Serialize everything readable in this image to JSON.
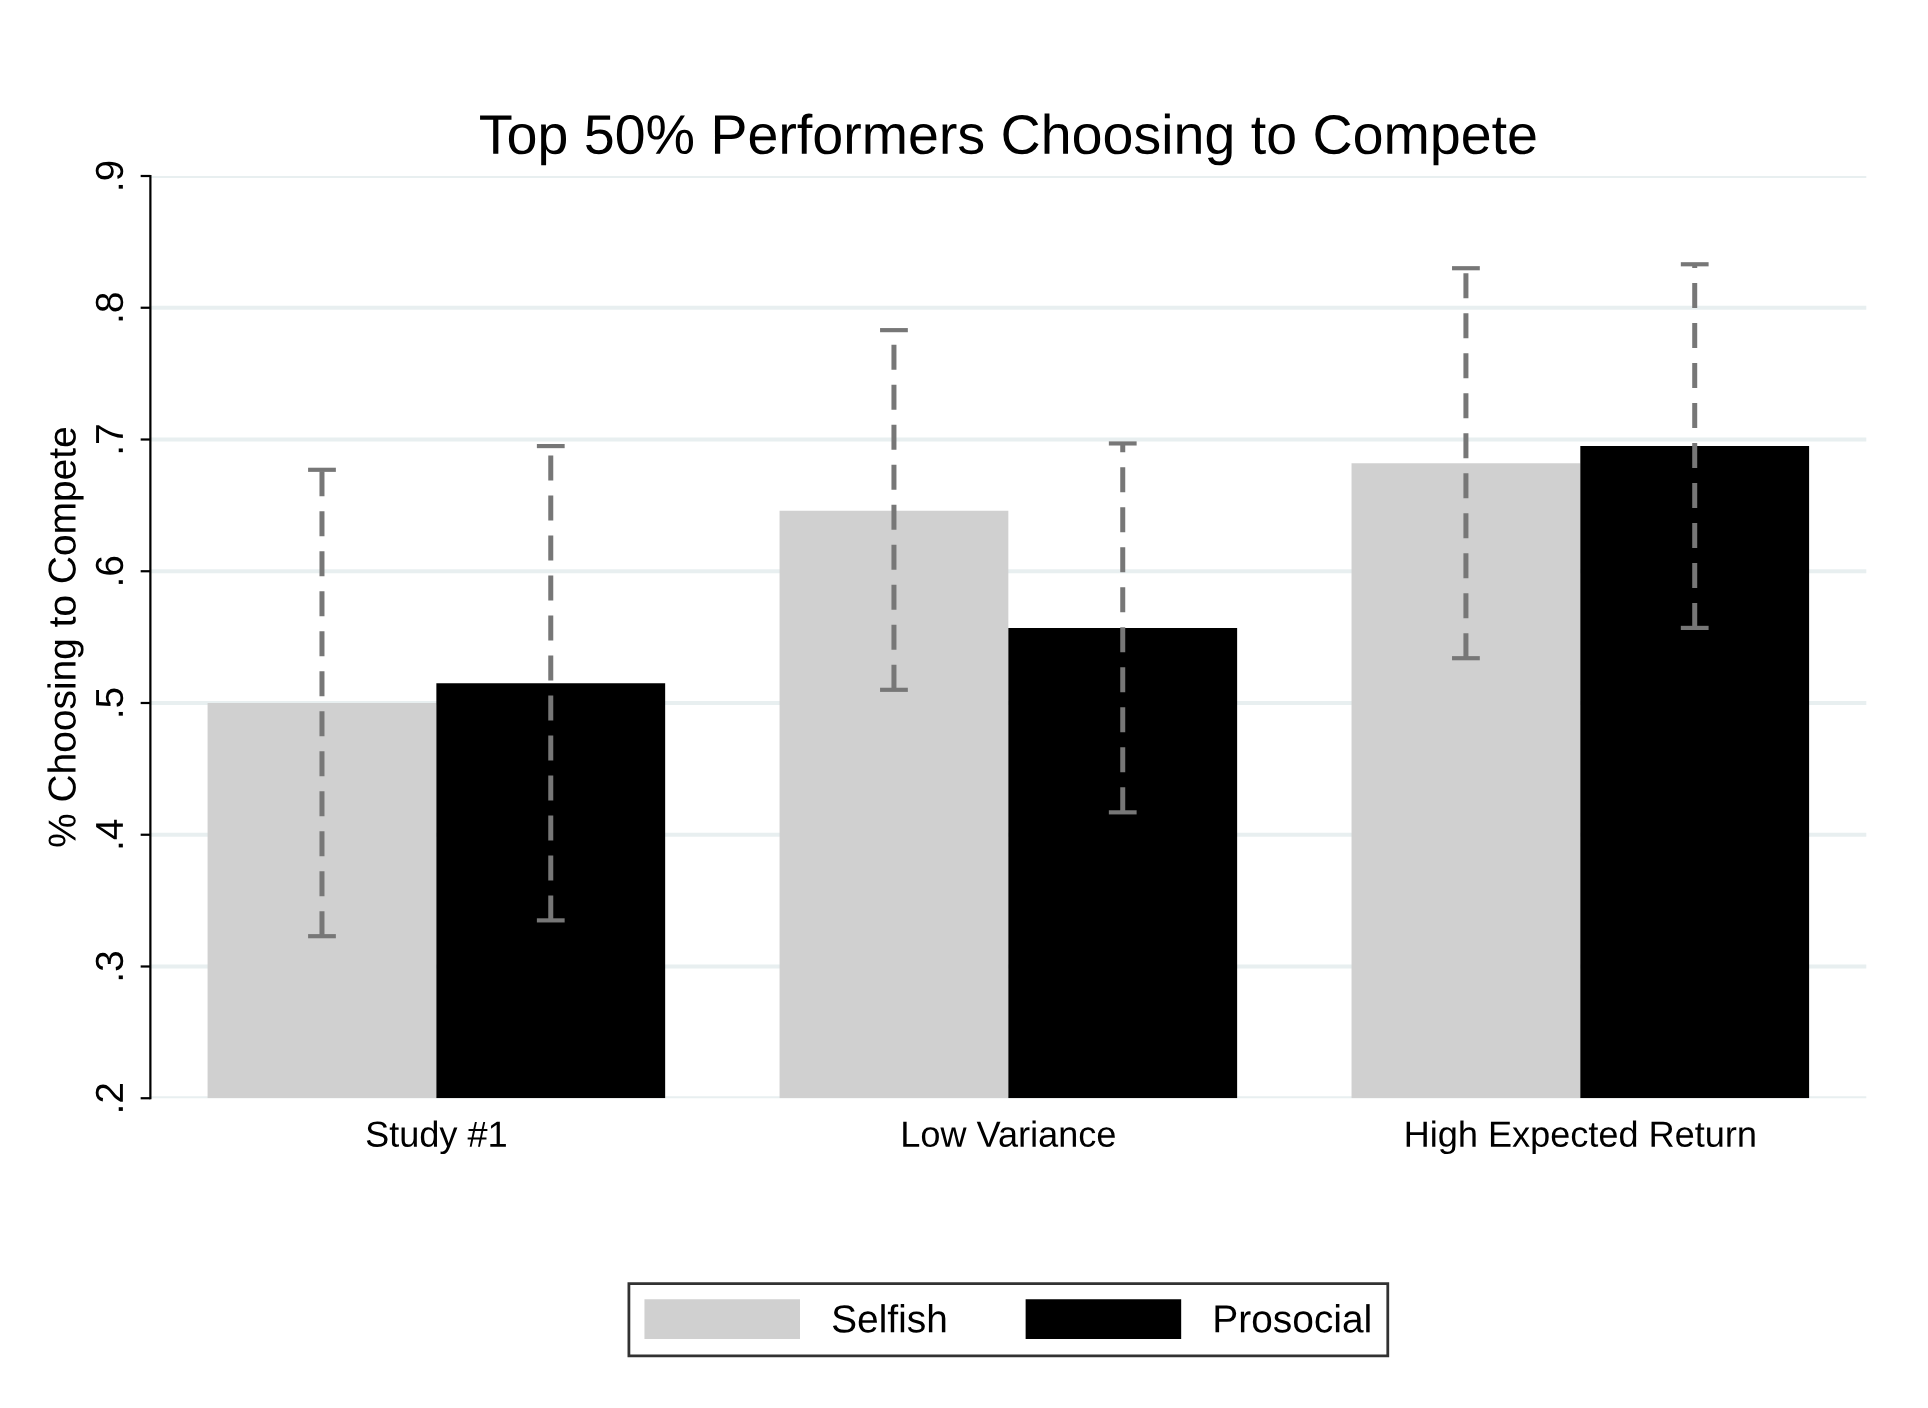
{
  "chart_data": {
    "type": "bar",
    "title": "Top 50% Performers Choosing to Compete",
    "ylabel": "% Choosing to Compete",
    "categories": [
      "Study #1",
      "Low Variance",
      "High Expected Return"
    ],
    "series": [
      {
        "name": "Selfish",
        "color": "#d0d0d0",
        "values": [
          0.5,
          0.646,
          0.682
        ],
        "errors": [
          [
            0.323,
            0.677
          ],
          [
            0.51,
            0.783
          ],
          [
            0.534,
            0.83
          ]
        ]
      },
      {
        "name": "Prosocial",
        "color": "#000000",
        "values": [
          0.515,
          0.557,
          0.695
        ],
        "errors": [
          [
            0.335,
            0.695
          ],
          [
            0.417,
            0.697
          ],
          [
            0.557,
            0.833
          ]
        ]
      }
    ],
    "ylim": [
      0.2,
      0.9
    ],
    "yticks": [
      {
        "value": 0.2,
        "label": ".2"
      },
      {
        "value": 0.3,
        "label": ".3"
      },
      {
        "value": 0.4,
        "label": ".4"
      },
      {
        "value": 0.5,
        "label": ".5"
      },
      {
        "value": 0.6,
        "label": ".6"
      },
      {
        "value": 0.7,
        "label": ".7"
      },
      {
        "value": 0.8,
        "label": ".8"
      },
      {
        "value": 0.9,
        "label": ".9"
      }
    ],
    "grid": "y",
    "legend": "bottom"
  }
}
